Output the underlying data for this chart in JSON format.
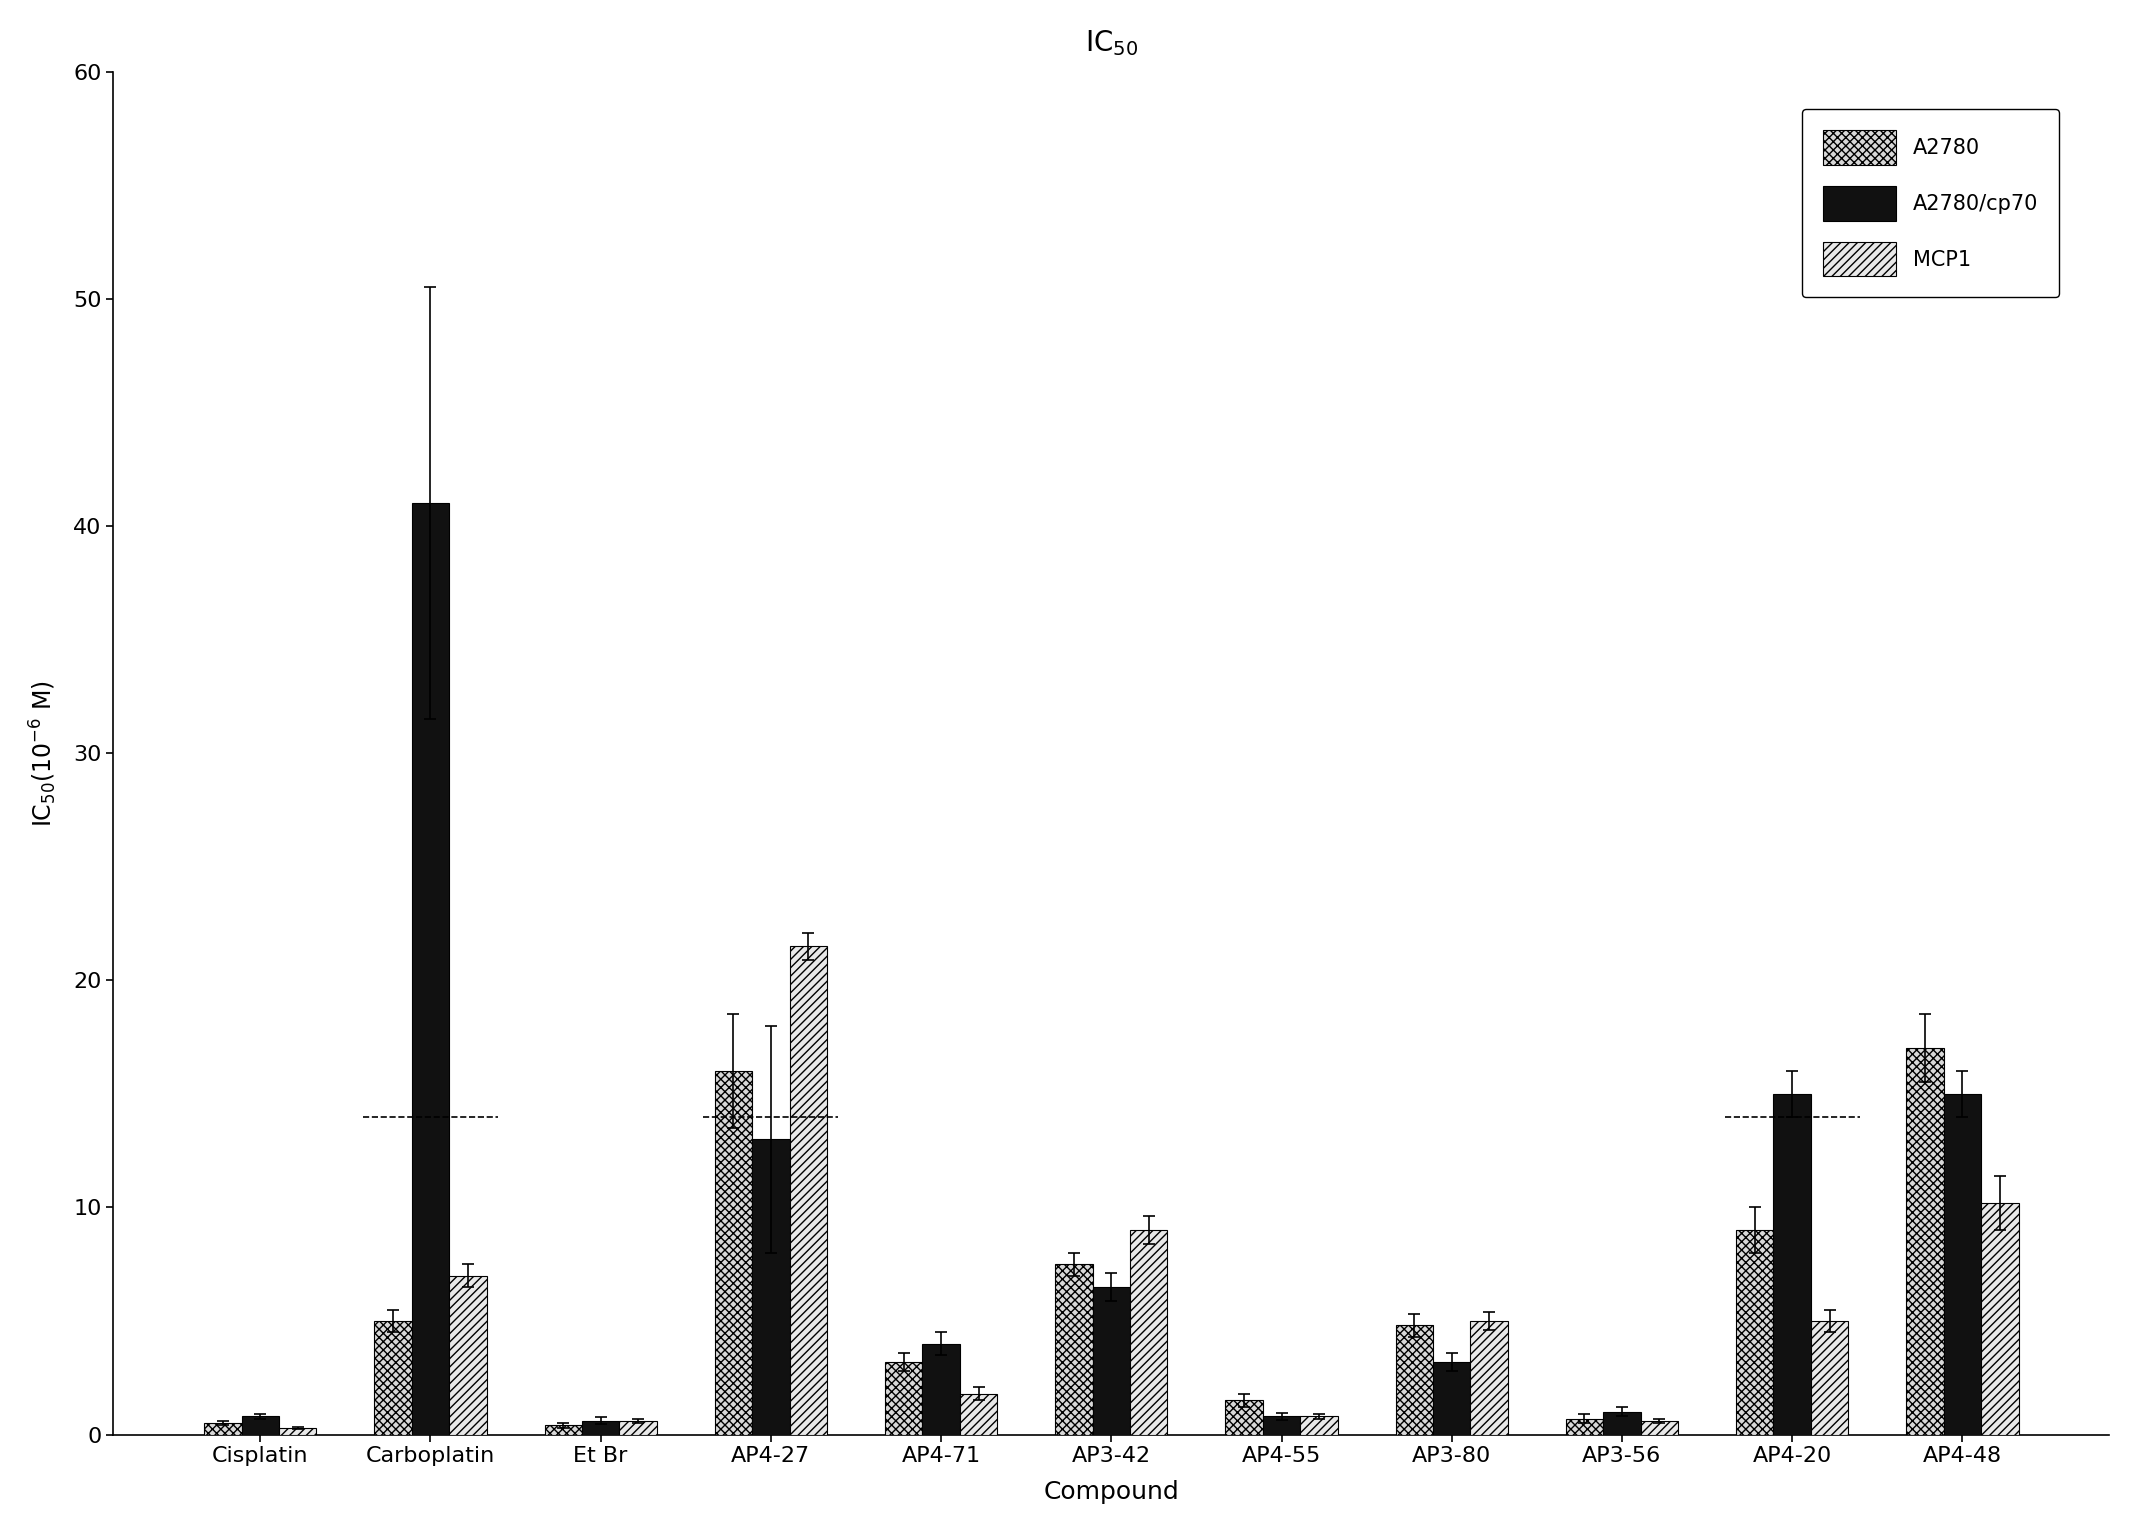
{
  "title": "IC$_{50}$",
  "xlabel": "Compound",
  "ylabel": "IC$_{50}$(10$^{-6}$ M)",
  "categories": [
    "Cisplatin",
    "Carboplatin",
    "Et Br",
    "AP4-27",
    "AP4-71",
    "AP3-42",
    "AP4-55",
    "AP3-80",
    "AP3-56",
    "AP4-20",
    "AP4-48"
  ],
  "series": {
    "A2780": {
      "values": [
        0.5,
        5.0,
        0.4,
        16.0,
        3.2,
        7.5,
        1.5,
        4.8,
        0.7,
        9.0,
        17.0
      ],
      "errors": [
        0.1,
        0.5,
        0.1,
        2.5,
        0.4,
        0.5,
        0.3,
        0.5,
        0.2,
        1.0,
        1.5
      ],
      "color": "#d8d8d8",
      "hatch": "xxxx"
    },
    "A2780/cp70": {
      "values": [
        0.8,
        41.0,
        0.6,
        13.0,
        4.0,
        6.5,
        0.8,
        3.2,
        1.0,
        15.0,
        15.0
      ],
      "errors": [
        0.1,
        9.5,
        0.15,
        5.0,
        0.5,
        0.6,
        0.15,
        0.4,
        0.2,
        1.0,
        1.0
      ],
      "color": "#111111",
      "hatch": ""
    },
    "MCP1": {
      "values": [
        0.3,
        7.0,
        0.6,
        21.5,
        1.8,
        9.0,
        0.8,
        5.0,
        0.6,
        5.0,
        10.2
      ],
      "errors": [
        0.05,
        0.5,
        0.1,
        0.6,
        0.3,
        0.6,
        0.1,
        0.4,
        0.1,
        0.5,
        1.2
      ],
      "color": "#e8e8e8",
      "hatch": "////"
    }
  },
  "dashed_line_y": 14.0,
  "dashed_line_groups": [
    1,
    3,
    9
  ],
  "ylim": [
    0,
    60
  ],
  "yticks": [
    0,
    10,
    20,
    30,
    40,
    50,
    60
  ],
  "bar_width": 0.22,
  "figsize": [
    21.37,
    15.32
  ],
  "dpi": 100
}
